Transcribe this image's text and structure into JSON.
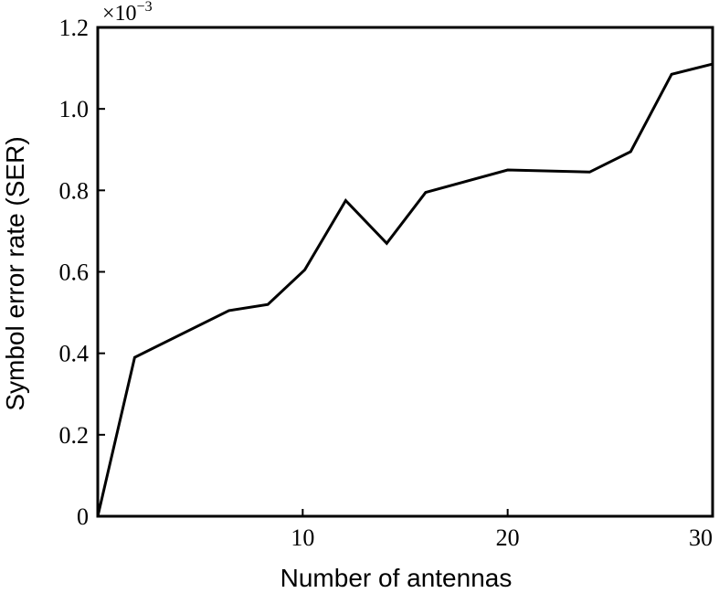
{
  "chart_data": {
    "type": "line",
    "title": "",
    "xlabel": "Number of antennas",
    "ylabel": "Symbol error rate (SER)",
    "y_multiplier": "×10",
    "y_multiplier_exponent": "−3",
    "xlim": [
      0,
      30
    ],
    "ylim": [
      0,
      1.2
    ],
    "x_ticks": [
      10,
      20,
      30
    ],
    "x_tick_labels": [
      "10",
      "20",
      "30"
    ],
    "y_ticks": [
      0,
      0.2,
      0.4,
      0.6,
      0.8,
      1.0,
      1.2
    ],
    "y_tick_labels": [
      "0",
      "0.2",
      "0.4",
      "0.6",
      "0.8",
      "1.0",
      "1.2"
    ],
    "grid": false,
    "series": [
      {
        "x": [
          0,
          1.8,
          6.4,
          8.3,
          10.1,
          12.1,
          14.1,
          16.0,
          20.0,
          24.0,
          26.0,
          28.0,
          30.0
        ],
        "y": [
          0,
          0.39,
          0.505,
          0.52,
          0.605,
          0.775,
          0.67,
          0.795,
          0.85,
          0.845,
          0.895,
          1.085,
          1.11
        ]
      }
    ]
  }
}
